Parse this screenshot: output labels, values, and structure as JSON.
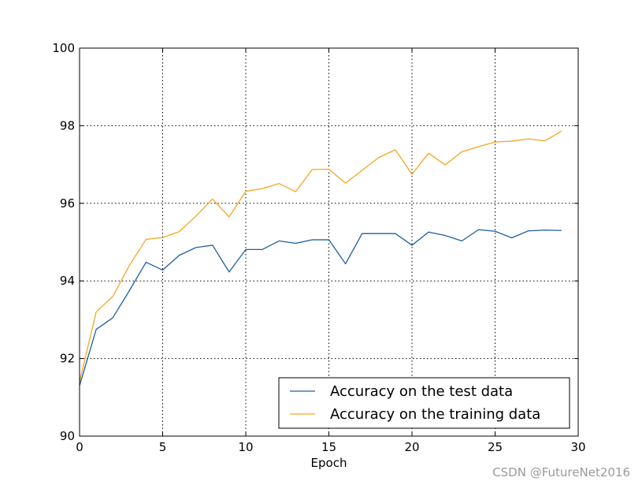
{
  "chart_data": {
    "type": "line",
    "xlabel": "Epoch",
    "ylabel": "",
    "xlim": [
      0,
      30
    ],
    "ylim": [
      90,
      100
    ],
    "x_ticks": [
      0,
      5,
      10,
      15,
      20,
      25,
      30
    ],
    "y_ticks": [
      90,
      92,
      94,
      96,
      98,
      100
    ],
    "grid": true,
    "legend_position": "bottom-right",
    "x": [
      0,
      1,
      2,
      3,
      4,
      5,
      6,
      7,
      8,
      9,
      10,
      11,
      12,
      13,
      14,
      15,
      16,
      17,
      18,
      19,
      20,
      21,
      22,
      23,
      24,
      25,
      26,
      27,
      28,
      29
    ],
    "series": [
      {
        "name": "Accuracy on the test data",
        "color": "#1f5fa0",
        "values": [
          91.3,
          92.75,
          93.05,
          93.75,
          94.48,
          94.28,
          94.66,
          94.86,
          94.92,
          94.23,
          94.81,
          94.81,
          95.03,
          94.97,
          95.06,
          95.06,
          94.44,
          95.22,
          95.22,
          95.22,
          94.92,
          95.26,
          95.17,
          95.03,
          95.32,
          95.28,
          95.11,
          95.29,
          95.31,
          95.3
        ]
      },
      {
        "name": "Accuracy on the training data",
        "color": "#f5a623",
        "values": [
          91.4,
          93.2,
          93.6,
          94.4,
          95.07,
          95.12,
          95.27,
          95.67,
          96.11,
          95.65,
          96.31,
          96.38,
          96.51,
          96.3,
          96.87,
          96.88,
          96.52,
          96.85,
          97.18,
          97.38,
          96.75,
          97.29,
          96.99,
          97.33,
          97.46,
          97.58,
          97.6,
          97.66,
          97.61,
          97.86
        ]
      }
    ]
  },
  "watermark": "CSDN @FutureNet2016"
}
